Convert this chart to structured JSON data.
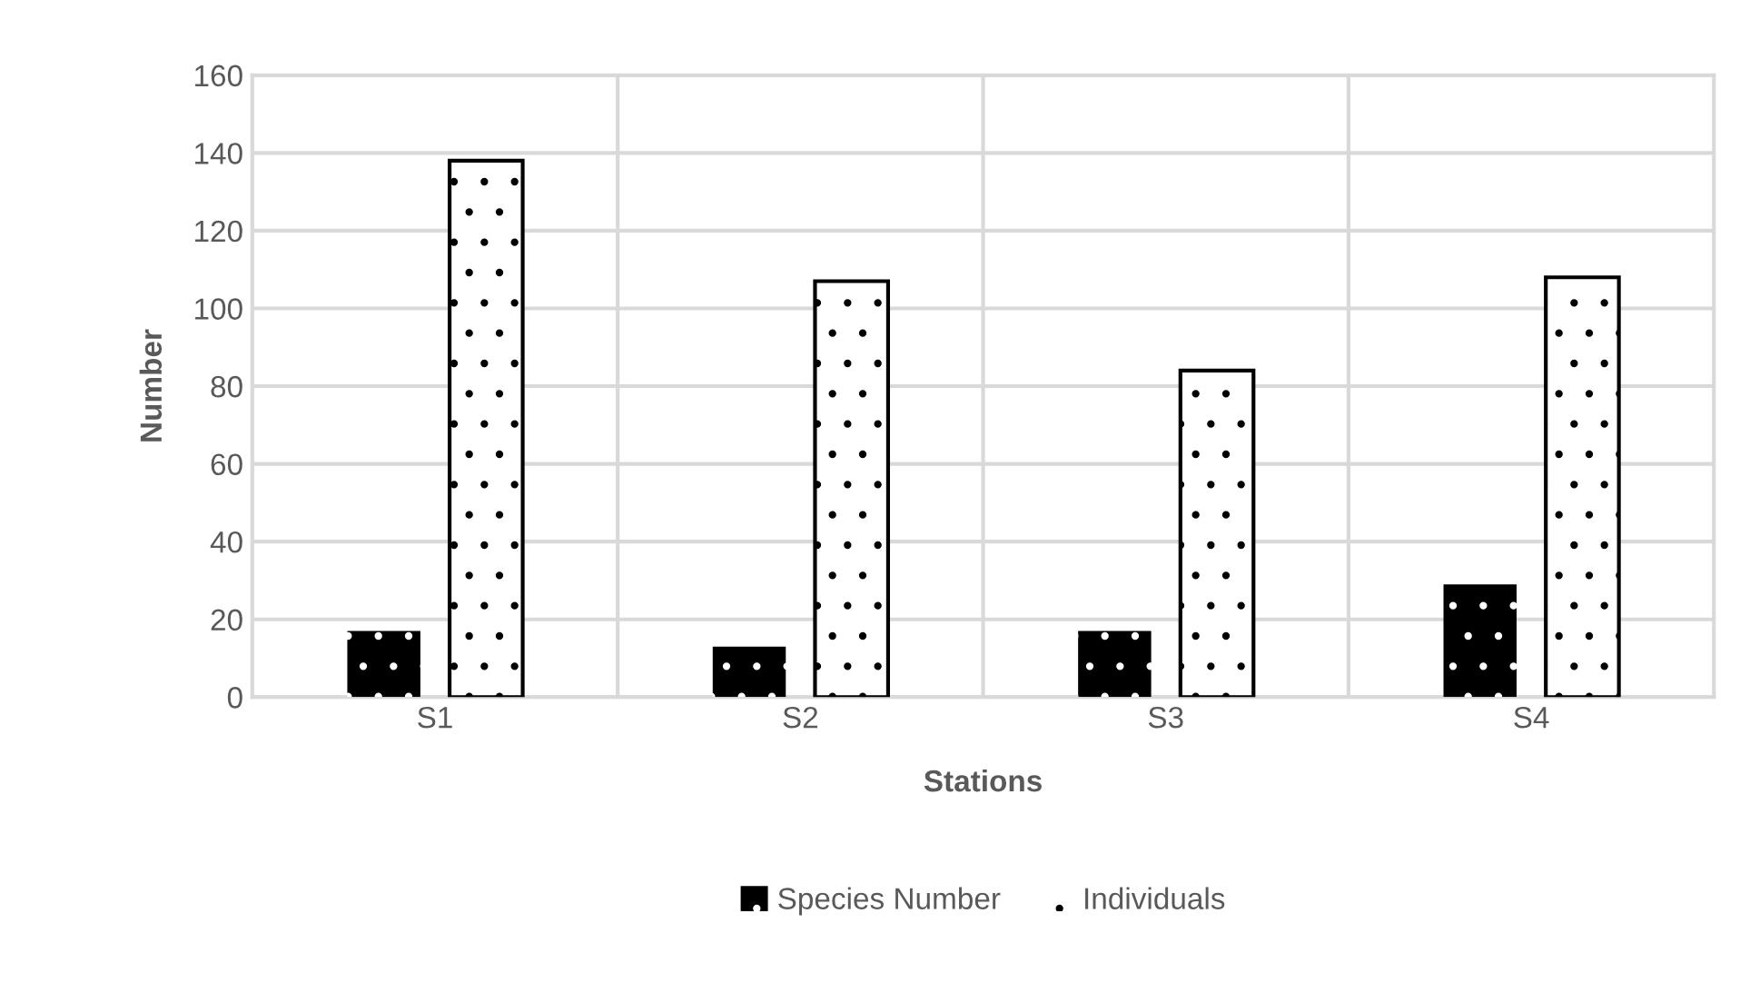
{
  "chart_data": {
    "type": "bar",
    "xlabel": "Stations",
    "ylabel": "Number",
    "categories": [
      "S1",
      "S2",
      "S3",
      "S4"
    ],
    "series": [
      {
        "name": "Species Number",
        "color": "#000000",
        "values": [
          17,
          13,
          17,
          29
        ]
      },
      {
        "name": "Individuals",
        "color": "#ffffff",
        "values": [
          138,
          107,
          84,
          108
        ]
      }
    ],
    "ylim": [
      0,
      160
    ],
    "yticks": [
      0,
      20,
      40,
      60,
      80,
      100,
      120,
      140,
      160
    ],
    "grid": true,
    "legend": "bottom"
  }
}
